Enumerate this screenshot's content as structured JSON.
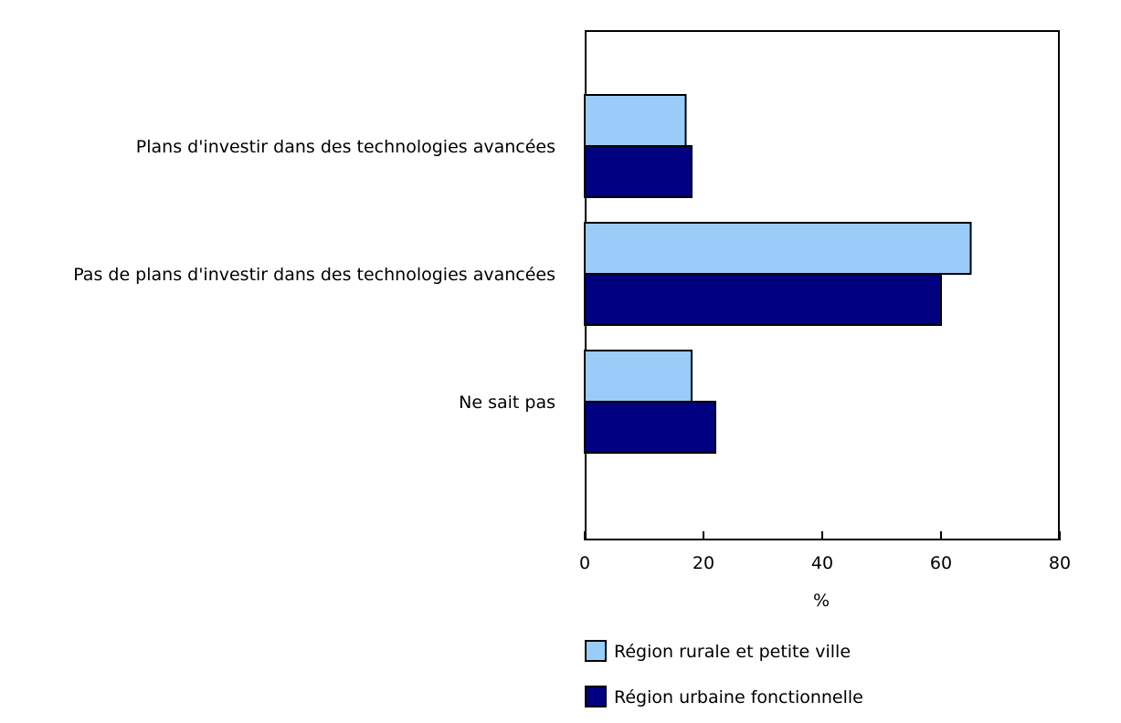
{
  "chart_data": {
    "type": "bar",
    "orientation": "horizontal",
    "categories": [
      "Plans d'investir dans des technologies avancées",
      "Pas de plans d'investir dans des technologies avancées",
      "Ne sait pas"
    ],
    "series": [
      {
        "name": "Région rurale et petite ville",
        "color": "#99CCF9",
        "values": [
          17,
          65,
          18
        ]
      },
      {
        "name": "Région urbaine fonctionnelle",
        "color": "#000080",
        "values": [
          18,
          60,
          22
        ]
      }
    ],
    "xlabel": "%",
    "xlim": [
      0,
      80
    ],
    "xticks": [
      0,
      20,
      40,
      60,
      80
    ],
    "grid": false,
    "legend_position": "below-plot-left",
    "colors": {
      "bar_border": "#000000",
      "plot_border": "#000000",
      "text": "#000000",
      "background": "#FFFFFF"
    }
  }
}
